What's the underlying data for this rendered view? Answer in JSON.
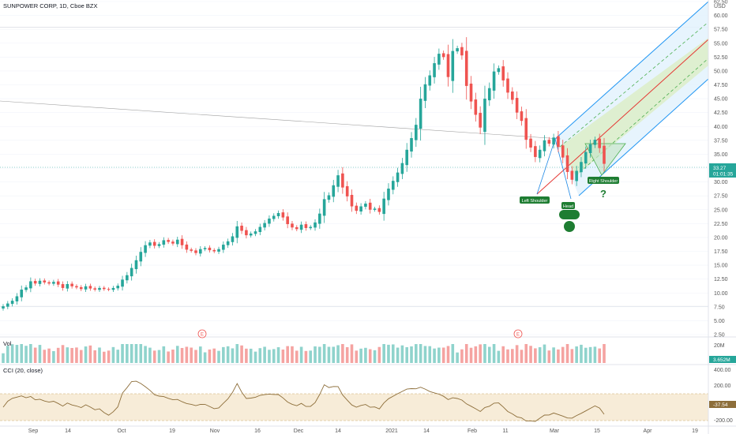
{
  "header": {
    "symbol_line": "SUNPOWER CORP, 1D, Cboe BZX"
  },
  "currency": "USD",
  "colors": {
    "up": "#26a69a",
    "down": "#ef5350",
    "vol_up": "#8fd3cc",
    "vol_down": "#f5a3a1",
    "channel_outer": "#2196f3",
    "channel_mid": "#4caf50",
    "channel_center": "#e53935",
    "cci_line": "#8d6e3a",
    "cci_band": "#f7ecd8",
    "pattern": "#1e7d32"
  },
  "price_axis": {
    "ticks": [
      "62.50",
      "60.00",
      "57.50",
      "55.00",
      "52.50",
      "50.00",
      "47.50",
      "45.00",
      "42.50",
      "40.00",
      "37.50",
      "35.00",
      "32.50",
      "30.00",
      "27.50",
      "25.00",
      "22.50",
      "20.00",
      "17.50",
      "15.00",
      "12.50",
      "10.00",
      "7.50",
      "5.00",
      "2.50"
    ],
    "current_price": "33.27",
    "countdown": "01:01:35"
  },
  "time_axis": {
    "labels": [
      "Sep",
      "14",
      "Oct",
      "19",
      "Nov",
      "16",
      "Dec",
      "14",
      "2021",
      "14",
      "Feb",
      "11",
      "Mar",
      "15",
      "Apr",
      "19"
    ]
  },
  "earnings_marker": "E",
  "volume": {
    "label": "Vol",
    "axis_label": "20M",
    "current": "3.652M"
  },
  "cci": {
    "label": "CCI (20, close)",
    "ticks": [
      "400.00",
      "200.00",
      "-200.00"
    ],
    "current": "-37.54"
  },
  "annotations": {
    "left_shoulder": "Left Shoulder",
    "head": "Head",
    "right_shoulder": "Right Shoulder",
    "question": "?"
  },
  "chart_data": {
    "type": "candlestick",
    "title": "SUNPOWER CORP, 1D, Cboe BZX",
    "ylim": [
      2.5,
      62.5
    ],
    "close": [
      7.6,
      8.1,
      8.6,
      9.4,
      10.6,
      11.0,
      12.1,
      11.7,
      12.2,
      11.9,
      11.7,
      12.0,
      11.5,
      10.9,
      11.6,
      11.2,
      11.0,
      10.7,
      11.2,
      10.8,
      10.6,
      10.9,
      10.7,
      10.6,
      10.9,
      11.3,
      12.4,
      13.2,
      14.5,
      15.9,
      17.4,
      18.6,
      19.1,
      18.5,
      18.8,
      19.5,
      19.2,
      18.9,
      19.6,
      18.6,
      17.8,
      17.6,
      17.2,
      17.9,
      18.1,
      17.7,
      17.5,
      17.9,
      18.7,
      19.3,
      20.2,
      22.0,
      21.2,
      20.4,
      20.7,
      21.1,
      21.9,
      22.6,
      23.4,
      23.9,
      24.4,
      23.6,
      22.4,
      21.8,
      21.5,
      22.3,
      21.7,
      21.9,
      22.7,
      24.3,
      26.9,
      27.6,
      29.4,
      31.2,
      29.0,
      27.4,
      25.6,
      24.8,
      25.6,
      26.1,
      25.0,
      25.2,
      24.6,
      27.0,
      28.8,
      30.2,
      31.7,
      33.4,
      35.8,
      37.9,
      40.3,
      45.0,
      47.6,
      49.2,
      51.4,
      53.1,
      52.5,
      48.9,
      53.6,
      54.1,
      52.8,
      47.3,
      44.5,
      42.1,
      39.8,
      45.0,
      46.9,
      49.9,
      50.5,
      48.3,
      46.1,
      44.8,
      42.5,
      41.0,
      37.6,
      36.2,
      34.5,
      35.8,
      37.5,
      36.9,
      38.0,
      36.3,
      34.4,
      31.8,
      30.4,
      32.0,
      33.6,
      35.4,
      36.8,
      37.6,
      36.1,
      33.27
    ]
  }
}
